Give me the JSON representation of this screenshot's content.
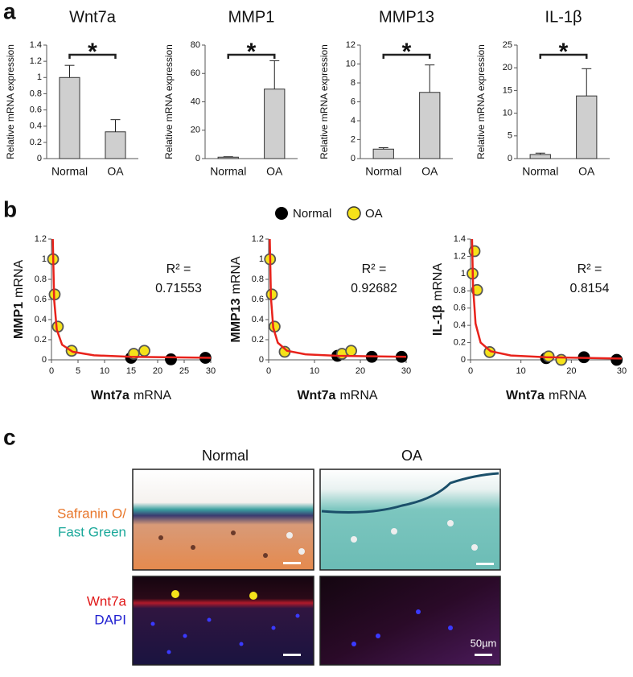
{
  "panel_labels": [
    "a",
    "b",
    "c"
  ],
  "chart_data": [
    {
      "type": "bar",
      "title": "Wnt7a",
      "ylabel": "Relative mRNA expression",
      "categories": [
        "Normal",
        "OA"
      ],
      "values": [
        1,
        0.33
      ],
      "errors": [
        0.15,
        0.15
      ],
      "color": "#cfcfcf",
      "ylim": [
        0,
        1.4
      ],
      "yticks": [
        0,
        0.2,
        0.4,
        0.6,
        0.8,
        1,
        1.2,
        1.4
      ],
      "annotation": "*"
    },
    {
      "type": "bar",
      "title": "MMP1",
      "ylabel": "Relative mRNA expression",
      "categories": [
        "Normal",
        "OA"
      ],
      "values": [
        1,
        49
      ],
      "errors": [
        0.3,
        20
      ],
      "color": "#cfcfcf",
      "ylim": [
        0,
        80
      ],
      "yticks": [
        0,
        20,
        40,
        60,
        80
      ],
      "annotation": "*"
    },
    {
      "type": "bar",
      "title": "MMP13",
      "ylabel": "Relative mRNA expression",
      "categories": [
        "Normal",
        "OA"
      ],
      "values": [
        1,
        7
      ],
      "errors": [
        0.15,
        2.9
      ],
      "color": "#cfcfcf",
      "ylim": [
        0,
        12
      ],
      "yticks": [
        0,
        2,
        4,
        6,
        8,
        10,
        12
      ],
      "annotation": "*"
    },
    {
      "type": "bar",
      "title": "IL-1β",
      "ylabel": "Relative mRNA expression",
      "categories": [
        "Normal",
        "OA"
      ],
      "values": [
        0.9,
        13.8
      ],
      "errors": [
        0.3,
        6
      ],
      "color": "#cfcfcf",
      "ylim": [
        0,
        25
      ],
      "yticks": [
        0,
        5,
        10,
        15,
        20,
        25
      ],
      "annotation": "*"
    },
    {
      "type": "scatter",
      "ylabel": [
        "MMP1",
        "mRNA"
      ],
      "xlabel": [
        "Wnt7a",
        "mRNA"
      ],
      "xlim": [
        0,
        30
      ],
      "xticks": [
        0,
        5,
        10,
        15,
        20,
        25,
        30
      ],
      "ylim": [
        0,
        1.2
      ],
      "yticks": [
        0,
        0.2,
        0.4,
        0.6,
        0.8,
        1,
        1.2
      ],
      "annotations": [
        "R² =",
        "0.71553"
      ],
      "series": [
        {
          "name": "Normal",
          "color": "#000000",
          "x": [
            15,
            22.5,
            29
          ],
          "values": [
            0.02,
            0.005,
            0.02
          ]
        },
        {
          "name": "OA",
          "color": "#f5e21a",
          "x": [
            0.3,
            0.6,
            1.2,
            3.8,
            15.5,
            17.5
          ],
          "values": [
            1.0,
            0.65,
            0.33,
            0.09,
            0.06,
            0.09
          ]
        }
      ],
      "fit": {
        "color": "#e8221b",
        "x": [
          0.25,
          0.5,
          1,
          2,
          4,
          8,
          15,
          30
        ],
        "y": [
          1.2,
          0.6,
          0.3,
          0.15,
          0.08,
          0.045,
          0.03,
          0.02
        ]
      }
    },
    {
      "type": "scatter",
      "ylabel": [
        "MMP13",
        "mRNA"
      ],
      "xlabel": [
        "Wnt7a",
        "mRNA"
      ],
      "xlim": [
        0,
        30
      ],
      "xticks": [
        0,
        10,
        20,
        30
      ],
      "ylim": [
        0,
        1.2
      ],
      "yticks": [
        0,
        0.2,
        0.4,
        0.6,
        0.8,
        1,
        1.2
      ],
      "annotations": [
        "R² =",
        "0.92682"
      ],
      "series": [
        {
          "name": "Normal",
          "color": "#000000",
          "x": [
            15,
            22.5,
            29
          ],
          "values": [
            0.04,
            0.03,
            0.03
          ]
        },
        {
          "name": "OA",
          "color": "#f5e21a",
          "x": [
            0.3,
            0.7,
            1.3,
            3.5,
            16,
            18
          ],
          "values": [
            1.0,
            0.65,
            0.33,
            0.08,
            0.06,
            0.09
          ]
        }
      ],
      "fit": {
        "color": "#e8221b",
        "x": [
          0.25,
          0.5,
          1,
          2,
          4,
          8,
          15,
          30
        ],
        "y": [
          1.2,
          0.62,
          0.32,
          0.17,
          0.09,
          0.055,
          0.04,
          0.03
        ]
      }
    },
    {
      "type": "scatter",
      "ylabel": [
        "IL-1β",
        "mRNA"
      ],
      "xlabel": [
        "Wnt7a",
        "mRNA"
      ],
      "xlim": [
        0,
        30
      ],
      "xticks": [
        0,
        10,
        20,
        30
      ],
      "ylim": [
        0,
        1.4
      ],
      "yticks": [
        0,
        0.2,
        0.4,
        0.6,
        0.8,
        1,
        1.2,
        1.4
      ],
      "annotations": [
        "R² =",
        "0.8154"
      ],
      "series": [
        {
          "name": "Normal",
          "color": "#000000",
          "x": [
            15,
            22.5,
            29
          ],
          "values": [
            0.02,
            0.03,
            0.0
          ]
        },
        {
          "name": "OA",
          "color": "#f5e21a",
          "x": [
            0.4,
            0.8,
            1.3,
            3.8,
            15.5,
            18
          ],
          "values": [
            1.0,
            1.26,
            0.81,
            0.09,
            0.04,
            0.0
          ]
        }
      ],
      "fit": {
        "color": "#e8221b",
        "x": [
          0.3,
          0.5,
          1,
          2,
          4,
          8,
          15,
          30
        ],
        "y": [
          1.4,
          0.85,
          0.42,
          0.2,
          0.1,
          0.05,
          0.03,
          0.015
        ]
      }
    }
  ],
  "histology": {
    "columns": [
      "Normal",
      "OA"
    ],
    "row1_label": [
      "Safranin O/",
      "Fast Green"
    ],
    "row2_label": [
      "Wnt7a",
      "DAPI"
    ],
    "scale_bar": "50µm"
  }
}
